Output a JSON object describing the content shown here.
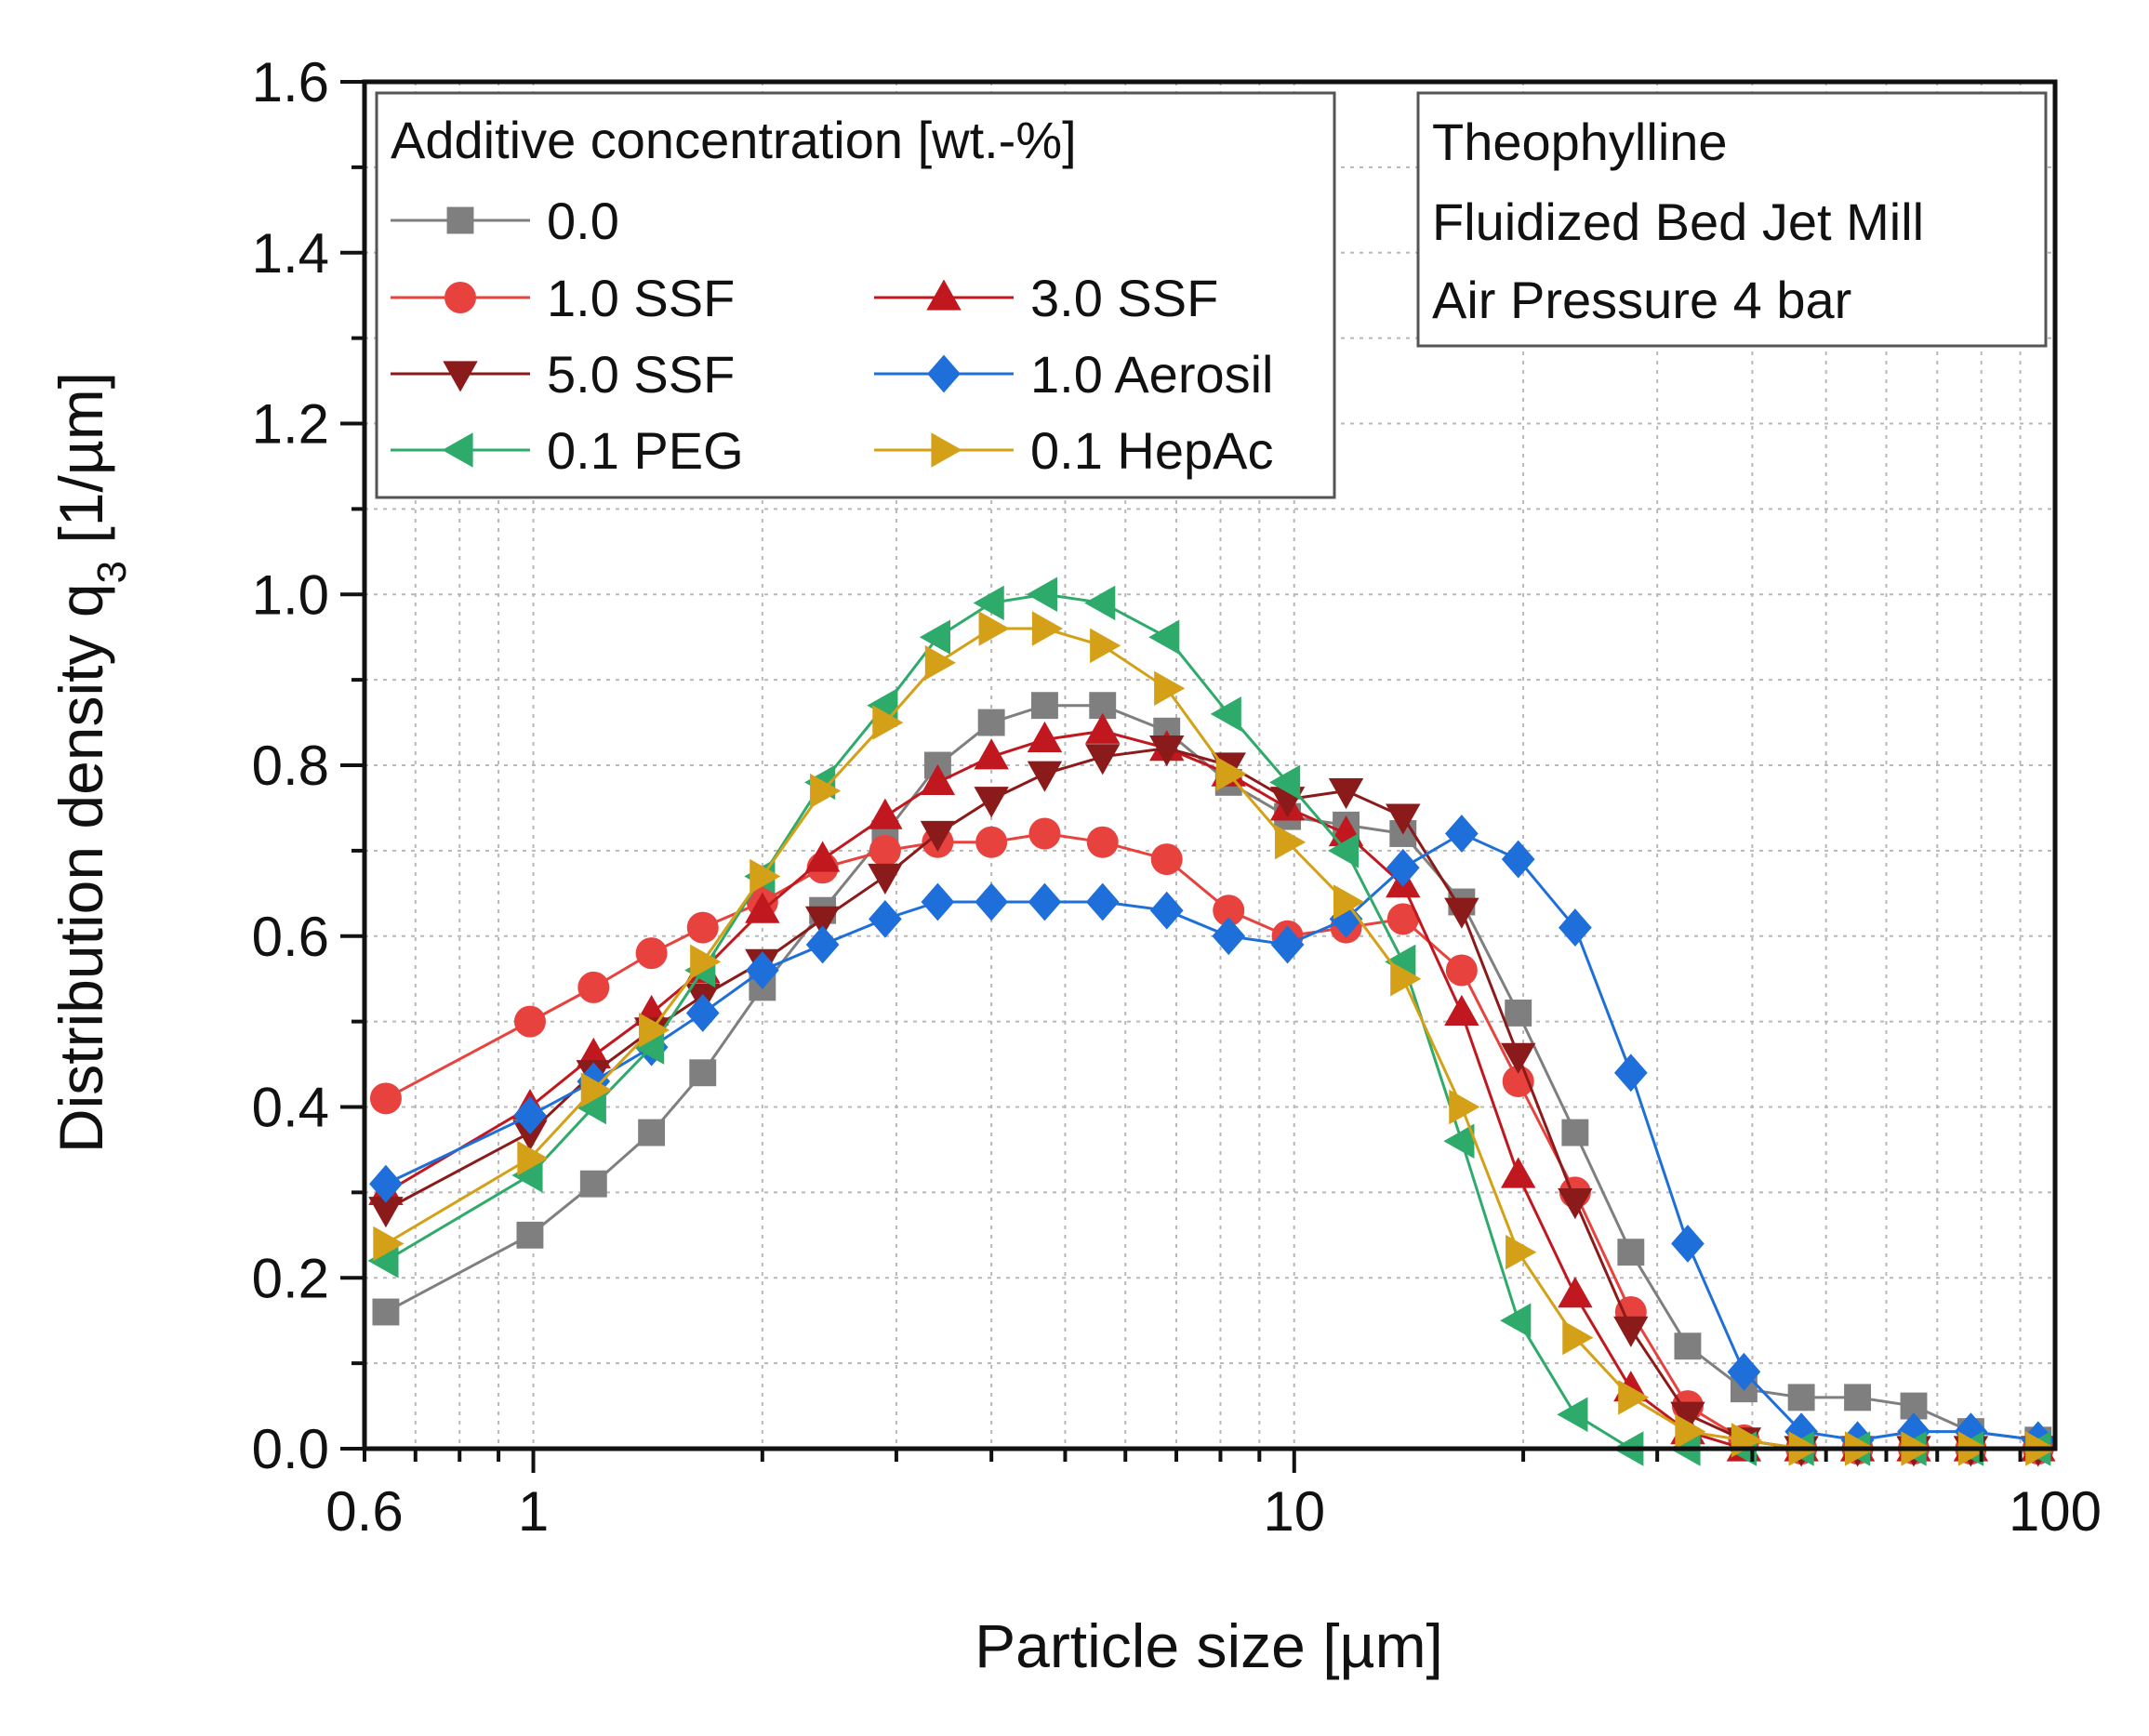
{
  "chart_data": {
    "type": "line",
    "xlabel": "Particle size [µm]",
    "ylabel_prefix": "Distribution density q",
    "ylabel_sub": "3",
    "ylabel_suffix": " [1/µm]",
    "xscale": "log",
    "xlim": [
      0.6,
      100
    ],
    "ylim": [
      0.0,
      1.6
    ],
    "xticks": [
      0.6,
      1,
      10,
      100
    ],
    "xtick_labels": [
      "0.6",
      "1",
      "10",
      "100"
    ],
    "yticks": [
      0.0,
      0.2,
      0.4,
      0.6,
      0.8,
      1.0,
      1.2,
      1.4,
      1.6
    ],
    "ytick_labels": [
      "0.0",
      "0.2",
      "0.4",
      "0.6",
      "0.8",
      "1.0",
      "1.2",
      "1.4",
      "1.6"
    ],
    "grid": true,
    "legend_title": "Additive concentration [wt.-%]",
    "legend_placement": "top-left",
    "annotation": [
      "Theophylline",
      "Fluidized Bed Jet Mill",
      "Air Pressure 4 bar"
    ],
    "annotation_placement": "top-right",
    "x": [
      0.64,
      0.99,
      1.2,
      1.43,
      1.67,
      2.0,
      2.4,
      2.9,
      3.4,
      4.0,
      4.7,
      5.6,
      6.8,
      8.2,
      9.8,
      11.7,
      13.9,
      16.6,
      19.7,
      23.4,
      27.7,
      32.9,
      39.0,
      46.4,
      55.0,
      65.2,
      77.5,
      95.0
    ],
    "series": [
      {
        "name": "0.0",
        "color": "#7f7f7f",
        "marker": "square",
        "values": [
          0.16,
          0.25,
          0.31,
          0.37,
          0.44,
          0.54,
          0.63,
          0.72,
          0.8,
          0.85,
          0.87,
          0.87,
          0.84,
          0.78,
          0.74,
          0.73,
          0.72,
          0.64,
          0.51,
          0.37,
          0.23,
          0.12,
          0.07,
          0.06,
          0.06,
          0.05,
          0.02,
          0.01
        ]
      },
      {
        "name": "1.0 SSF",
        "color": "#e8423f",
        "marker": "circle",
        "values": [
          0.41,
          0.5,
          0.54,
          0.58,
          0.61,
          0.64,
          0.68,
          0.7,
          0.71,
          0.71,
          0.72,
          0.71,
          0.69,
          0.63,
          0.6,
          0.61,
          0.62,
          0.56,
          0.43,
          0.3,
          0.16,
          0.05,
          0.01,
          0.0,
          0.0,
          0.0,
          0.0,
          0.0
        ]
      },
      {
        "name": "3.0 SSF",
        "color": "#c0181e",
        "marker": "triangle-up",
        "values": [
          0.3,
          0.4,
          0.46,
          0.51,
          0.56,
          0.63,
          0.69,
          0.74,
          0.78,
          0.81,
          0.83,
          0.84,
          0.82,
          0.79,
          0.75,
          0.72,
          0.66,
          0.51,
          0.32,
          0.18,
          0.07,
          0.02,
          0.0,
          0.0,
          0.0,
          0.0,
          0.0,
          0.0
        ]
      },
      {
        "name": "5.0 SSF",
        "color": "#8b1a1a",
        "marker": "triangle-down",
        "values": [
          0.28,
          0.37,
          0.44,
          0.49,
          0.53,
          0.57,
          0.62,
          0.67,
          0.72,
          0.76,
          0.79,
          0.81,
          0.82,
          0.8,
          0.76,
          0.77,
          0.74,
          0.63,
          0.46,
          0.29,
          0.14,
          0.04,
          0.01,
          0.0,
          0.0,
          0.0,
          0.0,
          0.0
        ]
      },
      {
        "name": "1.0 Aerosil",
        "color": "#1e6fd9",
        "marker": "diamond",
        "values": [
          0.31,
          0.39,
          0.43,
          0.47,
          0.51,
          0.56,
          0.59,
          0.62,
          0.64,
          0.64,
          0.64,
          0.64,
          0.63,
          0.6,
          0.59,
          0.62,
          0.68,
          0.72,
          0.69,
          0.61,
          0.44,
          0.24,
          0.09,
          0.02,
          0.01,
          0.02,
          0.02,
          0.01
        ]
      },
      {
        "name": "0.1 PEG",
        "color": "#2eab6a",
        "marker": "triangle-left",
        "values": [
          0.22,
          0.32,
          0.4,
          0.47,
          0.56,
          0.67,
          0.78,
          0.87,
          0.95,
          0.99,
          1.0,
          0.99,
          0.95,
          0.86,
          0.78,
          0.7,
          0.57,
          0.36,
          0.15,
          0.04,
          0.0,
          0.0,
          0.0,
          0.0,
          0.0,
          0.0,
          0.0,
          0.0
        ]
      },
      {
        "name": "0.1 HepAc",
        "color": "#d4a017",
        "marker": "triangle-right",
        "values": [
          0.24,
          0.34,
          0.42,
          0.49,
          0.57,
          0.67,
          0.77,
          0.85,
          0.92,
          0.96,
          0.96,
          0.94,
          0.89,
          0.79,
          0.71,
          0.64,
          0.55,
          0.4,
          0.23,
          0.13,
          0.06,
          0.02,
          0.01,
          0.0,
          0.0,
          0.0,
          0.0,
          0.0
        ]
      }
    ]
  }
}
